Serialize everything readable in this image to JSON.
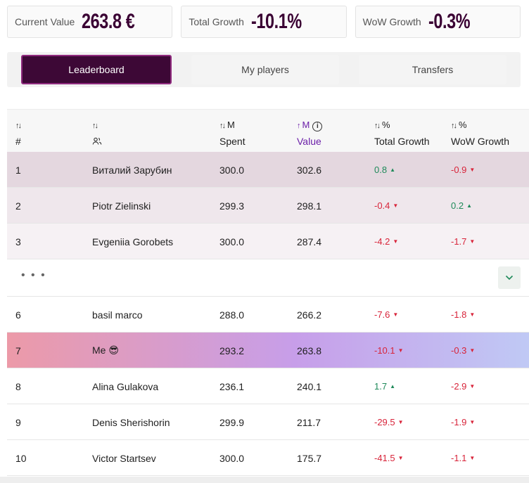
{
  "stats": {
    "current_value": {
      "label": "Current Value",
      "value": "263.8 €"
    },
    "total_growth": {
      "label": "Total Growth",
      "value": "-10.1%"
    },
    "wow_growth": {
      "label": "WoW Growth",
      "value": "-0.3%"
    }
  },
  "tabs": [
    {
      "label": "Leaderboard",
      "active": true
    },
    {
      "label": "My players",
      "active": false
    },
    {
      "label": "Transfers",
      "active": false
    }
  ],
  "columns": {
    "rank": {
      "sort": "↑↓",
      "title": "#"
    },
    "player": {
      "sort": "↑↓",
      "icon": "users-icon"
    },
    "spent": {
      "sort": "↑↓",
      "unit": "M",
      "title": "Spent"
    },
    "value": {
      "sort": "↑",
      "unit": "M",
      "title": "Value",
      "info": "i"
    },
    "total_growth": {
      "sort": "↑↓",
      "unit": "%",
      "title": "Total Growth"
    },
    "wow_growth": {
      "sort": "↑↓",
      "unit": "%",
      "title": "WoW Growth"
    }
  },
  "rows_top": [
    {
      "rank": "1",
      "name": "Виталий Зарубин",
      "spent": "300.0",
      "value": "302.6",
      "total": "0.8",
      "total_dir": "up",
      "wow": "-0.9",
      "wow_dir": "down"
    },
    {
      "rank": "2",
      "name": "Piotr Zielinski",
      "spent": "299.3",
      "value": "298.1",
      "total": "-0.4",
      "total_dir": "down",
      "wow": "0.2",
      "wow_dir": "up"
    },
    {
      "rank": "3",
      "name": "Evgeniia Gorobets",
      "spent": "300.0",
      "value": "287.4",
      "total": "-4.2",
      "total_dir": "down",
      "wow": "-1.7",
      "wow_dir": "down"
    }
  ],
  "separator": {
    "dots": "• • •",
    "expand_icon": "chevron-down-icon"
  },
  "rows_bottom": [
    {
      "rank": "6",
      "name": "basil marco",
      "spent": "288.0",
      "value": "266.2",
      "total": "-7.6",
      "total_dir": "down",
      "wow": "-1.8",
      "wow_dir": "down"
    },
    {
      "rank": "7",
      "name": "Me 😎",
      "spent": "293.2",
      "value": "263.8",
      "total": "-10.1",
      "total_dir": "down",
      "wow": "-0.3",
      "wow_dir": "down",
      "me": true
    },
    {
      "rank": "8",
      "name": "Alina Gulakova",
      "spent": "236.1",
      "value": "240.1",
      "total": "1.7",
      "total_dir": "up",
      "wow": "-2.9",
      "wow_dir": "down"
    },
    {
      "rank": "9",
      "name": "Denis Sherishorin",
      "spent": "299.9",
      "value": "211.7",
      "total": "-29.5",
      "total_dir": "down",
      "wow": "-1.9",
      "wow_dir": "down"
    },
    {
      "rank": "10",
      "name": "Victor Startsev",
      "spent": "300.0",
      "value": "175.7",
      "total": "-41.5",
      "total_dir": "down",
      "wow": "-1.1",
      "wow_dir": "down"
    }
  ],
  "colors": {
    "up": "#1f8a5a",
    "down": "#d8243a",
    "accent": "#3d0836"
  }
}
